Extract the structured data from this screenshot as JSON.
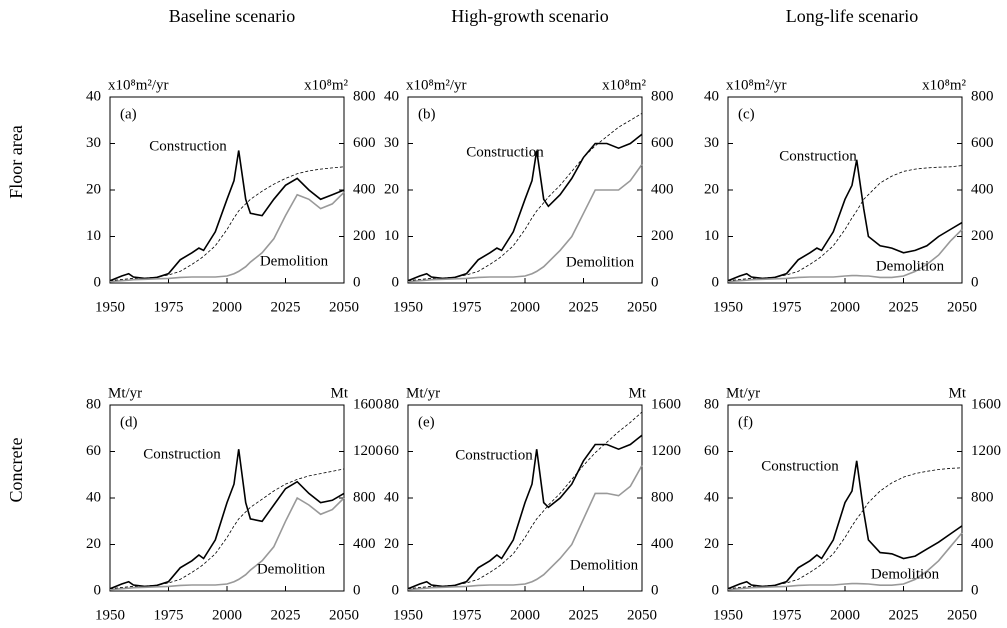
{
  "column_titles": [
    "Baseline scenario",
    "High-growth scenario",
    "Long-life scenario"
  ],
  "row_titles": [
    "Floor area",
    "Concrete"
  ],
  "chart_data": [
    {
      "type": "line",
      "title": "(a)",
      "y_label": "x10⁸m²/yr",
      "y2_label": "x10⁸m²",
      "x": [
        1950,
        1955,
        1958,
        1960,
        1965,
        1970,
        1975,
        1980,
        1985,
        1988,
        1990,
        1995,
        2000,
        2003,
        2005,
        2008,
        2010,
        2015,
        2020,
        2025,
        2030,
        2035,
        2040,
        2045,
        2050
      ],
      "xlim": [
        1950,
        2050
      ],
      "xticks": [
        1950,
        1975,
        2000,
        2025,
        2050
      ],
      "ylim": [
        0,
        40
      ],
      "yticks": [
        0,
        10,
        20,
        30,
        40
      ],
      "y2lim": [
        0,
        800
      ],
      "y2ticks": [
        0,
        200,
        400,
        600,
        800
      ],
      "series": [
        {
          "name": "Construction",
          "color": "#000000",
          "values": [
            0.5,
            1.5,
            2,
            1.3,
            1,
            1.2,
            2,
            5,
            6.5,
            7.5,
            7,
            11,
            18,
            22,
            28.5,
            18,
            15,
            14.5,
            18,
            21,
            22.5,
            20,
            18,
            19,
            20
          ]
        },
        {
          "name": "Demolition",
          "color": "#999999",
          "values": [
            0.3,
            0.5,
            0.6,
            0.7,
            0.8,
            0.9,
            1,
            1.2,
            1.3,
            1.3,
            1.3,
            1.3,
            1.5,
            2,
            2.5,
            3.5,
            4.5,
            6.5,
            9.5,
            14.5,
            19,
            18,
            16,
            17,
            19.5
          ]
        },
        {
          "color": "#000000",
          "line_style": "dashed",
          "axis": "y2",
          "values": [
            10,
            15,
            18,
            20,
            22,
            25,
            35,
            50,
            80,
            100,
            115,
            160,
            230,
            280,
            310,
            340,
            360,
            395,
            425,
            450,
            470,
            482,
            490,
            495,
            500
          ]
        }
      ]
    },
    {
      "type": "line",
      "title": "(b)",
      "y_label": "x10⁸m²/yr",
      "y2_label": "x10⁸m²",
      "x": [
        1950,
        1955,
        1958,
        1960,
        1965,
        1970,
        1975,
        1980,
        1985,
        1988,
        1990,
        1995,
        2000,
        2003,
        2005,
        2008,
        2010,
        2015,
        2020,
        2025,
        2030,
        2035,
        2040,
        2045,
        2050
      ],
      "xlim": [
        1950,
        2050
      ],
      "xticks": [
        1950,
        1975,
        2000,
        2025,
        2050
      ],
      "ylim": [
        0,
        40
      ],
      "yticks": [
        0,
        10,
        20,
        30,
        40
      ],
      "y2lim": [
        0,
        800
      ],
      "y2ticks": [
        0,
        200,
        400,
        600,
        800
      ],
      "series": [
        {
          "name": "Construction",
          "color": "#000000",
          "values": [
            0.5,
            1.5,
            2,
            1.3,
            1,
            1.2,
            2,
            5,
            6.5,
            7.5,
            7,
            11,
            18,
            22,
            28.5,
            18,
            16.5,
            19,
            22.5,
            27,
            30,
            30,
            29,
            30,
            32
          ]
        },
        {
          "name": "Demolition",
          "color": "#999999",
          "values": [
            0.3,
            0.5,
            0.6,
            0.7,
            0.8,
            0.9,
            1,
            1.2,
            1.3,
            1.3,
            1.3,
            1.3,
            1.5,
            2,
            2.5,
            3.5,
            4.5,
            7,
            10,
            15,
            20,
            20,
            20,
            22,
            25.5
          ]
        },
        {
          "color": "#000000",
          "line_style": "dashed",
          "axis": "y2",
          "values": [
            10,
            15,
            18,
            20,
            22,
            25,
            35,
            50,
            80,
            100,
            115,
            160,
            230,
            280,
            310,
            345,
            370,
            420,
            480,
            540,
            590,
            630,
            670,
            700,
            730
          ]
        }
      ]
    },
    {
      "type": "line",
      "title": "(c)",
      "y_label": "x10⁸m²/yr",
      "y2_label": "x10⁸m²",
      "x": [
        1950,
        1955,
        1958,
        1960,
        1965,
        1970,
        1975,
        1980,
        1985,
        1988,
        1990,
        1995,
        2000,
        2003,
        2005,
        2008,
        2010,
        2015,
        2020,
        2025,
        2030,
        2035,
        2040,
        2045,
        2050
      ],
      "xlim": [
        1950,
        2050
      ],
      "xticks": [
        1950,
        1975,
        2000,
        2025,
        2050
      ],
      "ylim": [
        0,
        40
      ],
      "yticks": [
        0,
        10,
        20,
        30,
        40
      ],
      "y2lim": [
        0,
        800
      ],
      "y2ticks": [
        0,
        200,
        400,
        600,
        800
      ],
      "series": [
        {
          "name": "Construction",
          "color": "#000000",
          "values": [
            0.5,
            1.5,
            2,
            1.3,
            1,
            1.2,
            2,
            5,
            6.5,
            7.5,
            7,
            11,
            18,
            21,
            26.5,
            16,
            10,
            8,
            7.5,
            6.5,
            7,
            8,
            10,
            11.5,
            13
          ]
        },
        {
          "name": "Demolition",
          "color": "#999999",
          "values": [
            0.3,
            0.5,
            0.6,
            0.7,
            0.8,
            0.9,
            1,
            1.2,
            1.3,
            1.3,
            1.3,
            1.3,
            1.5,
            1.6,
            1.6,
            1.5,
            1.5,
            1.2,
            1.2,
            1.5,
            2.5,
            4,
            6,
            9,
            11.5
          ]
        },
        {
          "color": "#000000",
          "line_style": "dashed",
          "axis": "y2",
          "values": [
            10,
            15,
            18,
            20,
            22,
            25,
            35,
            50,
            80,
            100,
            115,
            160,
            230,
            280,
            310,
            360,
            380,
            430,
            460,
            480,
            490,
            495,
            498,
            500,
            505
          ]
        }
      ]
    },
    {
      "type": "line",
      "title": "(d)",
      "y_label": "Mt/yr",
      "y2_label": "Mt",
      "x": [
        1950,
        1955,
        1958,
        1960,
        1965,
        1970,
        1975,
        1980,
        1985,
        1988,
        1990,
        1995,
        2000,
        2003,
        2005,
        2008,
        2010,
        2015,
        2020,
        2025,
        2030,
        2035,
        2040,
        2045,
        2050
      ],
      "xlim": [
        1950,
        2050
      ],
      "xticks": [
        1950,
        1975,
        2000,
        2025,
        2050
      ],
      "ylim": [
        0,
        80
      ],
      "yticks": [
        0,
        20,
        40,
        60,
        80
      ],
      "y2lim": [
        0,
        1600
      ],
      "y2ticks": [
        0,
        400,
        800,
        1200,
        1600
      ],
      "series": [
        {
          "name": "Construction",
          "color": "#000000",
          "values": [
            1,
            3,
            4,
            2.6,
            2,
            2.4,
            4,
            10,
            13,
            15.5,
            14,
            22,
            38,
            46,
            61,
            38,
            31,
            30,
            37,
            44,
            47,
            42,
            38,
            39,
            42
          ]
        },
        {
          "name": "Demolition",
          "color": "#999999",
          "values": [
            0.6,
            1,
            1.2,
            1.4,
            1.6,
            1.8,
            2,
            2.4,
            2.6,
            2.6,
            2.6,
            2.6,
            3,
            4,
            5,
            7,
            9,
            13,
            19,
            30,
            40,
            37,
            33,
            35,
            40
          ]
        },
        {
          "color": "#000000",
          "line_style": "dashed",
          "axis": "y2",
          "values": [
            20,
            30,
            36,
            40,
            44,
            50,
            70,
            100,
            160,
            200,
            230,
            320,
            460,
            560,
            620,
            680,
            720,
            790,
            860,
            920,
            960,
            990,
            1010,
            1030,
            1050
          ]
        }
      ]
    },
    {
      "type": "line",
      "title": "(e)",
      "y_label": "Mt/yr",
      "y2_label": "Mt",
      "x": [
        1950,
        1955,
        1958,
        1960,
        1965,
        1970,
        1975,
        1980,
        1985,
        1988,
        1990,
        1995,
        2000,
        2003,
        2005,
        2008,
        2010,
        2015,
        2020,
        2025,
        2030,
        2035,
        2040,
        2045,
        2050
      ],
      "xlim": [
        1950,
        2050
      ],
      "xticks": [
        1950,
        1975,
        2000,
        2025,
        2050
      ],
      "ylim": [
        0,
        80
      ],
      "yticks": [
        0,
        20,
        40,
        60,
        80
      ],
      "y2lim": [
        0,
        1600
      ],
      "y2ticks": [
        0,
        400,
        800,
        1200,
        1600
      ],
      "series": [
        {
          "name": "Construction",
          "color": "#000000",
          "values": [
            1,
            3,
            4,
            2.6,
            2,
            2.4,
            4,
            10,
            13,
            15.5,
            14,
            22,
            38,
            46,
            61,
            38,
            36,
            40,
            46,
            56,
            63,
            63,
            61,
            63,
            67
          ]
        },
        {
          "name": "Demolition",
          "color": "#999999",
          "values": [
            0.6,
            1,
            1.2,
            1.4,
            1.6,
            1.8,
            2,
            2.4,
            2.6,
            2.6,
            2.6,
            2.6,
            3,
            4,
            5,
            7,
            9,
            14,
            20,
            31,
            42,
            42,
            41,
            45,
            54
          ]
        },
        {
          "color": "#000000",
          "line_style": "dashed",
          "axis": "y2",
          "values": [
            20,
            30,
            36,
            40,
            44,
            50,
            70,
            100,
            160,
            200,
            230,
            320,
            460,
            560,
            620,
            690,
            740,
            840,
            960,
            1080,
            1190,
            1280,
            1370,
            1450,
            1540
          ]
        }
      ]
    },
    {
      "type": "line",
      "title": "(f)",
      "y_label": "Mt/yr",
      "y2_label": "Mt",
      "x": [
        1950,
        1955,
        1958,
        1960,
        1965,
        1970,
        1975,
        1980,
        1985,
        1988,
        1990,
        1995,
        2000,
        2003,
        2005,
        2008,
        2010,
        2015,
        2020,
        2025,
        2030,
        2035,
        2040,
        2045,
        2050
      ],
      "xlim": [
        1950,
        2050
      ],
      "xticks": [
        1950,
        1975,
        2000,
        2025,
        2050
      ],
      "ylim": [
        0,
        80
      ],
      "yticks": [
        0,
        20,
        40,
        60,
        80
      ],
      "y2lim": [
        0,
        1600
      ],
      "y2ticks": [
        0,
        400,
        800,
        1200,
        1600
      ],
      "series": [
        {
          "name": "Construction",
          "color": "#000000",
          "values": [
            1,
            3,
            4,
            2.6,
            2,
            2.4,
            4,
            10,
            13,
            15.5,
            14,
            22,
            38,
            43,
            56,
            34,
            22,
            16.5,
            16,
            14,
            15,
            18,
            21,
            24.5,
            28
          ]
        },
        {
          "name": "Demolition",
          "color": "#999999",
          "values": [
            0.6,
            1,
            1.2,
            1.4,
            1.6,
            1.8,
            2,
            2.4,
            2.6,
            2.6,
            2.6,
            2.6,
            3,
            3.2,
            3.2,
            3.1,
            3,
            2.5,
            2.5,
            3,
            5,
            8.5,
            13,
            19,
            25
          ]
        },
        {
          "color": "#000000",
          "line_style": "dashed",
          "axis": "y2",
          "values": [
            20,
            30,
            36,
            40,
            44,
            50,
            70,
            100,
            160,
            200,
            230,
            320,
            460,
            560,
            620,
            700,
            760,
            860,
            930,
            980,
            1010,
            1030,
            1045,
            1055,
            1060
          ]
        }
      ]
    }
  ]
}
